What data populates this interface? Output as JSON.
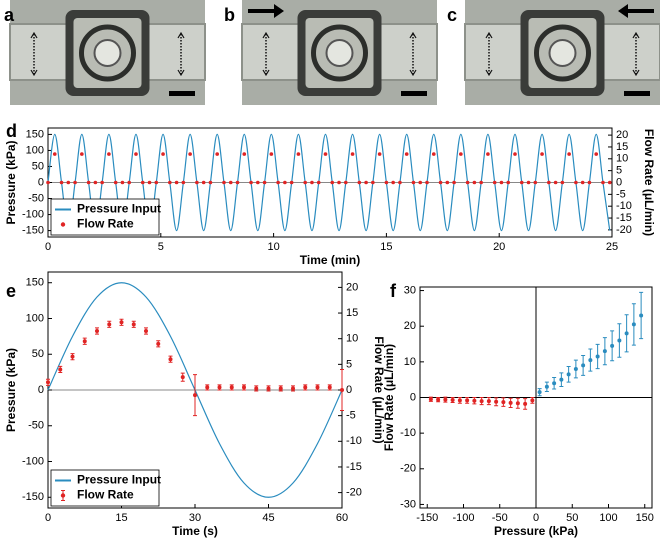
{
  "figure_panels": [
    {
      "label": "a"
    },
    {
      "label": "b"
    },
    {
      "label": "c"
    }
  ],
  "chart_data": [
    {
      "type": "line",
      "label": "d",
      "xlabel": "Time (min)",
      "ylabel": "Pressure (kPa)",
      "y2label": "Flow Rate (μL/min)",
      "x": [
        0,
        0.3,
        0.6,
        0.9,
        1.2,
        1.5,
        1.8,
        2.1,
        2.4,
        2.7,
        3,
        3.3,
        3.6,
        3.9,
        4.2,
        4.5,
        4.8,
        5.1,
        5.4,
        5.7,
        6,
        6.3,
        6.6,
        6.9,
        7.2,
        7.5,
        7.8,
        8.1,
        8.4,
        8.7,
        9,
        9.3,
        9.6,
        9.9,
        10.2,
        10.5,
        10.8,
        11.1,
        11.4,
        11.7,
        12,
        12.3,
        12.6,
        12.9,
        13.2,
        13.5,
        13.8,
        14.1,
        14.4,
        14.7,
        15,
        15.3,
        15.6,
        15.9,
        16.2,
        16.5,
        16.8,
        17.1,
        17.4,
        17.7,
        18,
        18.3,
        18.6,
        18.9,
        19.2,
        19.5,
        19.8,
        20.1,
        20.4,
        20.7,
        21,
        21.3,
        21.6,
        21.9,
        22.2,
        22.5,
        22.8,
        23.1,
        23.4,
        23.7,
        24,
        24.3,
        24.6,
        24.9
      ],
      "xlim": [
        0,
        25
      ],
      "xticks": [
        0,
        5,
        10,
        15,
        20,
        25
      ],
      "ylim": [
        -170,
        170
      ],
      "yticks": [
        -150,
        -100,
        -50,
        0,
        50,
        100,
        150
      ],
      "y2lim": [
        -23,
        23
      ],
      "y2ticks": [
        -20,
        -15,
        -10,
        -5,
        0,
        5,
        10,
        15,
        20
      ],
      "legend": "lower left",
      "series": [
        {
          "name": "Pressure Input",
          "color": "#2a8cbf",
          "values": [
            0,
            150,
            0,
            -150,
            0,
            150,
            0,
            -150,
            0,
            150,
            0,
            -150,
            0,
            150,
            0,
            -150,
            0,
            150,
            0,
            -150,
            0,
            150,
            0,
            -150,
            0,
            150,
            0,
            -150,
            0,
            150,
            0,
            -150,
            0,
            150,
            0,
            -150,
            0,
            150,
            0,
            -150,
            0,
            150,
            0,
            -150,
            0,
            150,
            0,
            -150,
            0,
            150,
            0,
            -150,
            0,
            150,
            0,
            -150,
            0,
            150,
            0,
            -150,
            0,
            150,
            0,
            -150,
            0,
            150,
            0,
            -150,
            0,
            150,
            0,
            -150,
            0,
            150,
            0,
            -150,
            0,
            150,
            0,
            -150,
            0,
            150,
            0,
            -150
          ]
        },
        {
          "name": "Flow Rate",
          "color": "#e02424",
          "axis": "y2",
          "marker": "dot",
          "values": [
            0,
            12,
            0,
            0,
            0,
            12,
            0,
            0,
            0,
            12,
            0,
            0,
            0,
            12,
            0,
            0,
            0,
            12,
            0,
            0,
            0,
            12,
            0,
            0,
            0,
            12,
            0,
            0,
            0,
            12,
            0,
            0,
            0,
            12,
            0,
            0,
            0,
            12,
            0,
            0,
            0,
            12,
            0,
            0,
            0,
            12,
            0,
            0,
            0,
            12,
            0,
            0,
            0,
            12,
            0,
            0,
            0,
            12,
            0,
            0,
            0,
            12,
            0,
            0,
            0,
            12,
            0,
            0,
            0,
            12,
            0,
            0,
            0,
            12,
            0,
            0,
            0,
            12,
            0,
            0,
            0,
            12,
            0,
            0
          ]
        }
      ]
    },
    {
      "type": "line",
      "label": "e",
      "xlabel": "Time (s)",
      "ylabel": "Pressure (kPa)",
      "y2label": "Flow Rate (μL/min)",
      "xlim": [
        0,
        60
      ],
      "xticks": [
        0,
        15,
        30,
        45,
        60
      ],
      "ylim": [
        -165,
        165
      ],
      "yticks": [
        -150,
        -100,
        -50,
        0,
        50,
        100,
        150
      ],
      "y2lim": [
        -23,
        23
      ],
      "y2ticks": [
        -20,
        -15,
        -10,
        -5,
        0,
        5,
        10,
        15,
        20
      ],
      "legend": "lower left",
      "series": [
        {
          "name": "Pressure Input",
          "color": "#2a8cbf",
          "x": [
            0,
            5,
            10,
            15,
            20,
            25,
            30,
            35,
            40,
            45,
            50,
            55,
            60
          ],
          "values": [
            0,
            75,
            130,
            150,
            130,
            75,
            0,
            -75,
            -130,
            -150,
            -130,
            -75,
            0
          ]
        },
        {
          "name": "Flow Rate",
          "color": "#e02424",
          "axis": "y2",
          "marker": "dot",
          "x": [
            0,
            2.5,
            5,
            7.5,
            10,
            12.5,
            15,
            17.5,
            20,
            22.5,
            25,
            27.5,
            30,
            32.5,
            35,
            37.5,
            40,
            42.5,
            45,
            47.5,
            50,
            52.5,
            55,
            57.5,
            60
          ],
          "values": [
            1.5,
            4,
            6.5,
            9.5,
            11.5,
            12.8,
            13.2,
            12.8,
            11.5,
            9,
            6,
            2.5,
            -1,
            0.5,
            0.5,
            0.5,
            0.5,
            0.3,
            0.3,
            0.3,
            0.3,
            0.5,
            0.5,
            0.5,
            0
          ],
          "errors": [
            0.6,
            0.6,
            0.6,
            0.6,
            0.6,
            0.6,
            0.6,
            0.6,
            0.6,
            0.6,
            0.6,
            0.8,
            4,
            0.5,
            0.5,
            0.5,
            0.5,
            0.5,
            0.5,
            0.5,
            0.5,
            0.5,
            0.5,
            0.5,
            4
          ]
        }
      ]
    },
    {
      "type": "scatter",
      "label": "f",
      "xlabel": "Pressure (kPa)",
      "ylabel": "Flow Rate (μL/min)",
      "xlim": [
        -160,
        160
      ],
      "xticks": [
        -150,
        -100,
        -50,
        0,
        50,
        100,
        150
      ],
      "ylim": [
        -31,
        31
      ],
      "yticks": [
        -30,
        -20,
        -10,
        0,
        10,
        20,
        30
      ],
      "series": [
        {
          "color": "#e02424",
          "x": [
            -145,
            -135,
            -125,
            -115,
            -105,
            -95,
            -85,
            -75,
            -65,
            -55,
            -45,
            -35,
            -25,
            -15,
            -5
          ],
          "values": [
            -0.5,
            -0.6,
            -0.6,
            -0.7,
            -0.8,
            -0.8,
            -0.9,
            -1,
            -1,
            -1.2,
            -1.3,
            -1.5,
            -1.6,
            -1.8,
            -0.8
          ],
          "errors": [
            0.6,
            0.6,
            0.7,
            0.7,
            0.8,
            0.8,
            0.9,
            1,
            1,
            1.1,
            1.2,
            1.3,
            1.4,
            1.5,
            0.8
          ]
        },
        {
          "color": "#2a8cbf",
          "x": [
            5,
            15,
            25,
            35,
            45,
            55,
            65,
            75,
            85,
            95,
            105,
            115,
            125,
            135,
            145
          ],
          "values": [
            1.5,
            3,
            4,
            5,
            6.5,
            8,
            9,
            10.5,
            11.5,
            13,
            14.5,
            16,
            18,
            20.5,
            23
          ],
          "errors": [
            1,
            1.3,
            1.6,
            1.9,
            2.2,
            2.5,
            2.8,
            3.1,
            3.4,
            3.8,
            4.2,
            4.7,
            5.2,
            5.8,
            6.5
          ]
        }
      ]
    }
  ]
}
